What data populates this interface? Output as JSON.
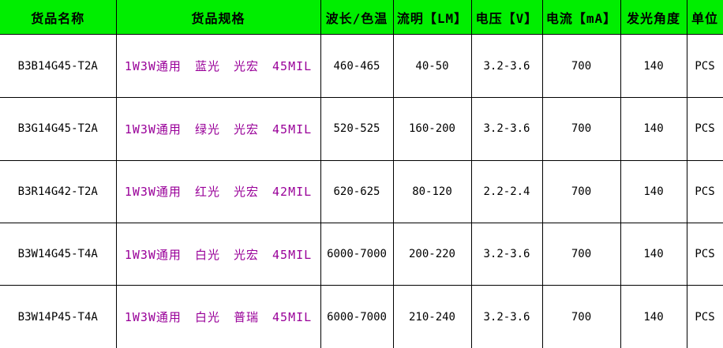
{
  "colors": {
    "header_bg": "#00ee00",
    "spec_text": "#990099",
    "border": "#000000",
    "text": "#000000"
  },
  "table": {
    "columns": [
      "货品名称",
      "货品规格",
      "波长/色温",
      "流明【LM】",
      "电压【V】",
      "电流【mA】",
      "发光角度",
      "单位"
    ],
    "rows": [
      {
        "name": "B3B14G45-T2A",
        "spec": "1W3W通用 蓝光 光宏 45MIL",
        "wavelength": "460-465",
        "lumens": "40-50",
        "voltage": "3.2-3.6",
        "current": "700",
        "angle": "140",
        "unit": "PCS"
      },
      {
        "name": "B3G14G45-T2A",
        "spec": "1W3W通用 绿光 光宏 45MIL",
        "wavelength": "520-525",
        "lumens": "160-200",
        "voltage": "3.2-3.6",
        "current": "700",
        "angle": "140",
        "unit": "PCS"
      },
      {
        "name": "B3R14G42-T2A",
        "spec": "1W3W通用 红光 光宏 42MIL",
        "wavelength": "620-625",
        "lumens": "80-120",
        "voltage": "2.2-2.4",
        "current": "700",
        "angle": "140",
        "unit": "PCS"
      },
      {
        "name": "B3W14G45-T4A",
        "spec": "1W3W通用 白光 光宏 45MIL",
        "wavelength": "6000-7000",
        "lumens": "200-220",
        "voltage": "3.2-3.6",
        "current": "700",
        "angle": "140",
        "unit": "PCS"
      },
      {
        "name": "B3W14P45-T4A",
        "spec": "1W3W通用 白光 普瑞 45MIL",
        "wavelength": "6000-7000",
        "lumens": "210-240",
        "voltage": "3.2-3.6",
        "current": "700",
        "angle": "140",
        "unit": "PCS"
      }
    ]
  }
}
